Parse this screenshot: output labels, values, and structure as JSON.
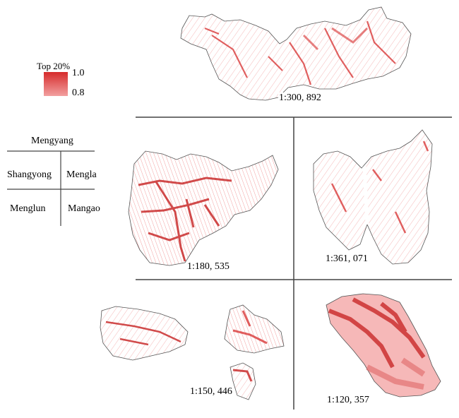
{
  "legend": {
    "title": "Top 20%",
    "high": "1.0",
    "low": "0.8"
  },
  "key": {
    "top": "Mengyang",
    "mid_left": "Shangyong",
    "mid_right": "Mengla",
    "bottom_left": "Menglun",
    "bottom_right": "Mangao"
  },
  "maps": {
    "mengyang": {
      "scale": "1:300, 892"
    },
    "shangyong": {
      "scale": "1:180, 535"
    },
    "mengla": {
      "scale": "1:361, 071"
    },
    "menglun": {
      "scale": "1:150, 446"
    },
    "mangao": {
      "scale": "1:120, 357"
    }
  },
  "colors": {
    "high": "#d62b2b",
    "low": "#f2a0a0",
    "outline": "#555555",
    "divider": "#444444"
  }
}
